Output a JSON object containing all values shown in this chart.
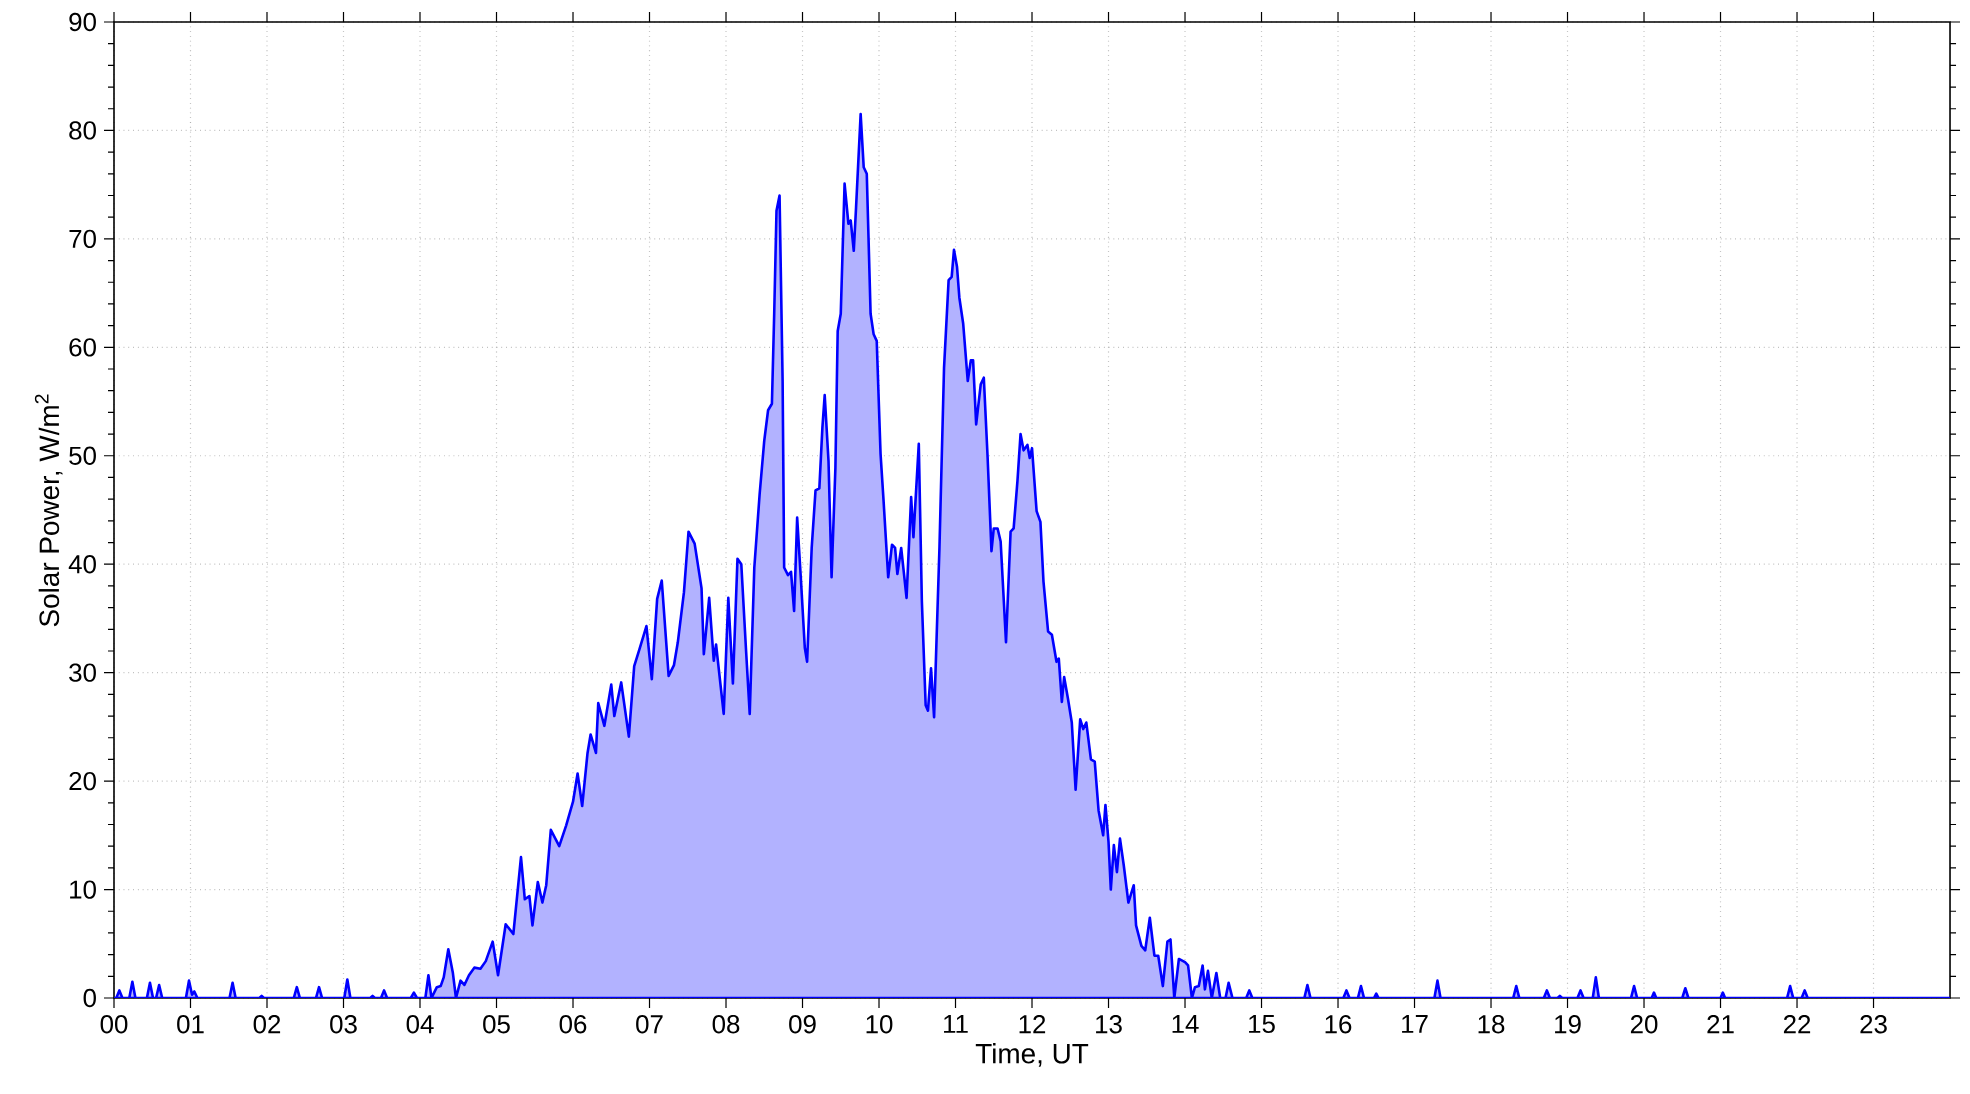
{
  "chart_data": {
    "type": "area",
    "xlabel": "Time, UT",
    "ylabel": "Solar Power, W/m$^{2}$",
    "color": "#0000ff",
    "grid": true,
    "xlim": [
      0,
      24
    ],
    "xticks": [
      {
        "value": 0,
        "label": "00"
      },
      {
        "value": 1,
        "label": "01"
      },
      {
        "value": 2,
        "label": "02"
      },
      {
        "value": 3,
        "label": "03"
      },
      {
        "value": 4,
        "label": "04"
      },
      {
        "value": 5,
        "label": "05"
      },
      {
        "value": 6,
        "label": "06"
      },
      {
        "value": 7,
        "label": "07"
      },
      {
        "value": 8,
        "label": "08"
      },
      {
        "value": 9,
        "label": "09"
      },
      {
        "value": 10,
        "label": "10"
      },
      {
        "value": 11,
        "label": "11"
      },
      {
        "value": 12,
        "label": "12"
      },
      {
        "value": 13,
        "label": "13"
      },
      {
        "value": 14,
        "label": "14"
      },
      {
        "value": 15,
        "label": "15"
      },
      {
        "value": 16,
        "label": "16"
      },
      {
        "value": 17,
        "label": "17"
      },
      {
        "value": 18,
        "label": "18"
      },
      {
        "value": 19,
        "label": "19"
      },
      {
        "value": 20,
        "label": "20"
      },
      {
        "value": 21,
        "label": "21"
      },
      {
        "value": 22,
        "label": "22"
      },
      {
        "value": 23,
        "label": "23"
      }
    ],
    "ylim": [
      0,
      90
    ],
    "yticks": [
      0,
      {
        "value": 2,
        "label": null
      },
      {
        "value": 4,
        "label": null
      },
      {
        "value": 6,
        "label": null
      },
      {
        "value": 8,
        "label": null
      },
      10,
      {
        "value": 12,
        "label": null
      },
      {
        "value": 14,
        "label": null
      },
      {
        "value": 16,
        "label": null
      },
      {
        "value": 18,
        "label": null
      },
      20,
      {
        "value": 22,
        "label": null
      },
      {
        "value": 24,
        "label": null
      },
      {
        "value": 26,
        "label": null
      },
      {
        "value": 28,
        "label": null
      },
      30,
      {
        "value": 32,
        "label": null
      },
      {
        "value": 34,
        "label": null
      },
      {
        "value": 36,
        "label": null
      },
      {
        "value": 38,
        "label": null
      },
      40,
      {
        "value": 42,
        "label": null
      },
      {
        "value": 44,
        "label": null
      },
      {
        "value": 46,
        "label": null
      },
      {
        "value": 48,
        "label": null
      },
      50,
      {
        "value": 52,
        "label": null
      },
      {
        "value": 54,
        "label": null
      },
      {
        "value": 56,
        "label": null
      },
      {
        "value": 58,
        "label": null
      },
      60,
      {
        "value": 62,
        "label": null
      },
      {
        "value": 64,
        "label": null
      },
      {
        "value": 66,
        "label": null
      },
      {
        "value": 68,
        "label": null
      },
      70,
      {
        "value": 72,
        "label": null
      },
      {
        "value": 74,
        "label": null
      },
      {
        "value": 76,
        "label": null
      },
      {
        "value": 78,
        "label": null
      },
      80,
      {
        "value": 82,
        "label": null
      },
      {
        "value": 84,
        "label": null
      },
      {
        "value": 86,
        "label": null
      },
      {
        "value": 88,
        "label": null
      },
      90
    ],
    "x": [
      0,
      0.03,
      0.07,
      0.11,
      0.2,
      0.24,
      0.28,
      0.43,
      0.47,
      0.51,
      0.55,
      0.59,
      0.63,
      0.94,
      0.98,
      1.02,
      1.05,
      1.09,
      1.51,
      1.55,
      1.59,
      1.9,
      1.93,
      1.96,
      2.35,
      2.39,
      2.43,
      2.64,
      2.68,
      2.72,
      3.01,
      3.05,
      3.09,
      3.35,
      3.38,
      3.41,
      3.49,
      3.53,
      3.57,
      3.88,
      3.92,
      3.96,
      4.07,
      4.11,
      4.15,
      4.22,
      4.27,
      4.31,
      4.37,
      4.43,
      4.47,
      4.53,
      4.58,
      4.64,
      4.71,
      4.79,
      4.86,
      4.95,
      5.02,
      5.12,
      5.22,
      5.32,
      5.37,
      5.43,
      5.47,
      5.54,
      5.6,
      5.65,
      5.71,
      5.82,
      5.91,
      6.0,
      6.06,
      6.12,
      6.19,
      6.23,
      6.3,
      6.33,
      6.41,
      6.5,
      6.54,
      6.63,
      6.73,
      6.8,
      6.87,
      6.96,
      7.03,
      7.1,
      7.16,
      7.25,
      7.32,
      7.37,
      7.45,
      7.51,
      7.59,
      7.68,
      7.71,
      7.78,
      7.84,
      7.87,
      7.97,
      8.03,
      8.09,
      8.15,
      8.2,
      8.26,
      8.31,
      8.37,
      8.44,
      8.5,
      8.55,
      8.6,
      8.63,
      8.66,
      8.7,
      8.74,
      8.76,
      8.81,
      8.85,
      8.89,
      8.93,
      8.98,
      9.03,
      9.06,
      9.12,
      9.17,
      9.22,
      9.26,
      9.29,
      9.34,
      9.38,
      9.43,
      9.46,
      9.5,
      9.55,
      9.6,
      9.63,
      9.67,
      9.7,
      9.76,
      9.8,
      9.84,
      9.89,
      9.93,
      9.97,
      10.02,
      10.06,
      10.12,
      10.17,
      10.21,
      10.24,
      10.29,
      10.36,
      10.42,
      10.45,
      10.52,
      10.56,
      10.61,
      10.64,
      10.68,
      10.72,
      10.79,
      10.85,
      10.91,
      10.95,
      10.98,
      11.02,
      11.05,
      11.1,
      11.16,
      11.2,
      11.23,
      11.27,
      11.33,
      11.37,
      11.42,
      11.47,
      11.5,
      11.55,
      11.59,
      11.66,
      11.72,
      11.76,
      11.81,
      11.85,
      11.89,
      11.94,
      11.97,
      12.0,
      12.06,
      12.11,
      12.15,
      12.21,
      12.26,
      12.32,
      12.35,
      12.39,
      12.42,
      12.47,
      12.52,
      12.57,
      12.63,
      12.67,
      12.71,
      12.77,
      12.82,
      12.87,
      12.93,
      12.96,
      13.0,
      13.03,
      13.07,
      13.11,
      13.15,
      13.2,
      13.26,
      13.33,
      13.36,
      13.43,
      13.48,
      13.54,
      13.6,
      13.65,
      13.71,
      13.77,
      13.81,
      13.86,
      13.92,
      14.0,
      14.04,
      14.09,
      14.13,
      14.18,
      14.23,
      14.26,
      14.3,
      14.35,
      14.41,
      14.46,
      14.53,
      14.57,
      14.62,
      14.8,
      14.84,
      14.88,
      15.56,
      15.6,
      15.64,
      16.07,
      16.11,
      16.15,
      16.26,
      16.3,
      16.34,
      16.47,
      16.5,
      16.53,
      17.26,
      17.3,
      17.34,
      18.29,
      18.33,
      18.37,
      18.69,
      18.73,
      18.77,
      18.87,
      18.9,
      18.93,
      19.13,
      19.17,
      19.21,
      19.33,
      19.37,
      19.41,
      19.83,
      19.87,
      19.91,
      20.1,
      20.13,
      20.16,
      20.5,
      20.54,
      20.58,
      21.0,
      21.03,
      21.06,
      21.87,
      21.91,
      21.95,
      22.06,
      22.1,
      22.14,
      24
    ],
    "values": [
      0,
      0,
      0.7,
      0,
      0,
      1.5,
      0,
      0,
      1.4,
      0,
      0,
      1.2,
      0,
      0,
      1.6,
      0.3,
      0.6,
      0,
      0,
      1.4,
      0,
      0,
      0.2,
      0,
      0,
      1.0,
      0,
      0,
      1.0,
      0,
      0,
      1.7,
      0,
      0,
      0.2,
      0,
      0,
      0.7,
      0,
      0,
      0.5,
      0,
      0,
      2.1,
      0,
      1.0,
      1.1,
      1.9,
      4.5,
      2.3,
      0,
      1.6,
      1.2,
      2.1,
      2.8,
      2.7,
      3.4,
      5.2,
      2.1,
      6.8,
      5.9,
      13.0,
      9.1,
      9.4,
      6.7,
      10.7,
      8.8,
      10.4,
      15.5,
      14.0,
      15.9,
      18.1,
      20.7,
      17.7,
      22.6,
      24.3,
      22.6,
      27.2,
      25.1,
      28.9,
      26.0,
      29.1,
      24.1,
      30.6,
      32.2,
      34.3,
      29.4,
      36.8,
      38.5,
      29.7,
      30.7,
      32.8,
      37.4,
      43.0,
      41.9,
      37.8,
      31.7,
      36.9,
      31.1,
      32.6,
      26.2,
      36.9,
      29.0,
      40.5,
      40.0,
      32.3,
      26.2,
      39.7,
      46.5,
      51.4,
      54.2,
      54.8,
      63.1,
      72.6,
      74.0,
      56.9,
      39.7,
      39.0,
      39.3,
      35.7,
      44.3,
      38.5,
      32.3,
      31.0,
      41.5,
      46.8,
      47.0,
      52.6,
      55.6,
      49.5,
      38.8,
      48.9,
      61.5,
      63.1,
      75.1,
      71.4,
      71.7,
      68.9,
      72.9,
      81.5,
      76.6,
      76.0,
      63.1,
      61.2,
      60.6,
      50.2,
      45.8,
      38.8,
      41.8,
      41.5,
      39.1,
      41.5,
      36.9,
      46.2,
      42.5,
      51.1,
      36.6,
      27.0,
      26.5,
      30.4,
      25.9,
      41.5,
      58.1,
      66.2,
      66.5,
      69.0,
      67.4,
      64.6,
      62.2,
      56.9,
      58.8,
      58.8,
      52.9,
      56.6,
      57.2,
      49.8,
      41.2,
      43.3,
      43.3,
      42.1,
      32.8,
      43.0,
      43.3,
      47.7,
      52.0,
      50.5,
      51.0,
      49.8,
      50.7,
      44.9,
      43.9,
      38.4,
      33.8,
      33.5,
      31.0,
      31.3,
      27.3,
      29.6,
      27.6,
      25.4,
      19.2,
      25.7,
      24.8,
      25.4,
      22.0,
      21.8,
      17.3,
      15.0,
      17.8,
      14.4,
      10.0,
      14.1,
      11.6,
      14.7,
      12.2,
      8.8,
      10.4,
      6.7,
      4.8,
      4.4,
      7.4,
      3.9,
      3.9,
      1.1,
      5.2,
      5.4,
      0,
      3.6,
      3.3,
      3.0,
      0,
      1.0,
      1.1,
      3.0,
      0.8,
      2.5,
      0,
      2.3,
      0,
      0,
      1.4,
      0,
      0,
      0.7,
      0,
      0,
      1.2,
      0,
      0,
      0.7,
      0,
      0,
      1.1,
      0,
      0,
      0.4,
      0,
      0,
      1.6,
      0,
      0,
      1.1,
      0,
      0,
      0.7,
      0,
      0,
      0.2,
      0,
      0,
      0.7,
      0,
      0,
      1.9,
      0,
      0,
      1.1,
      0,
      0,
      0.5,
      0,
      0,
      0.9,
      0,
      0,
      0.5,
      0,
      0,
      1.1,
      0,
      0,
      0.7,
      0,
      0
    ]
  }
}
